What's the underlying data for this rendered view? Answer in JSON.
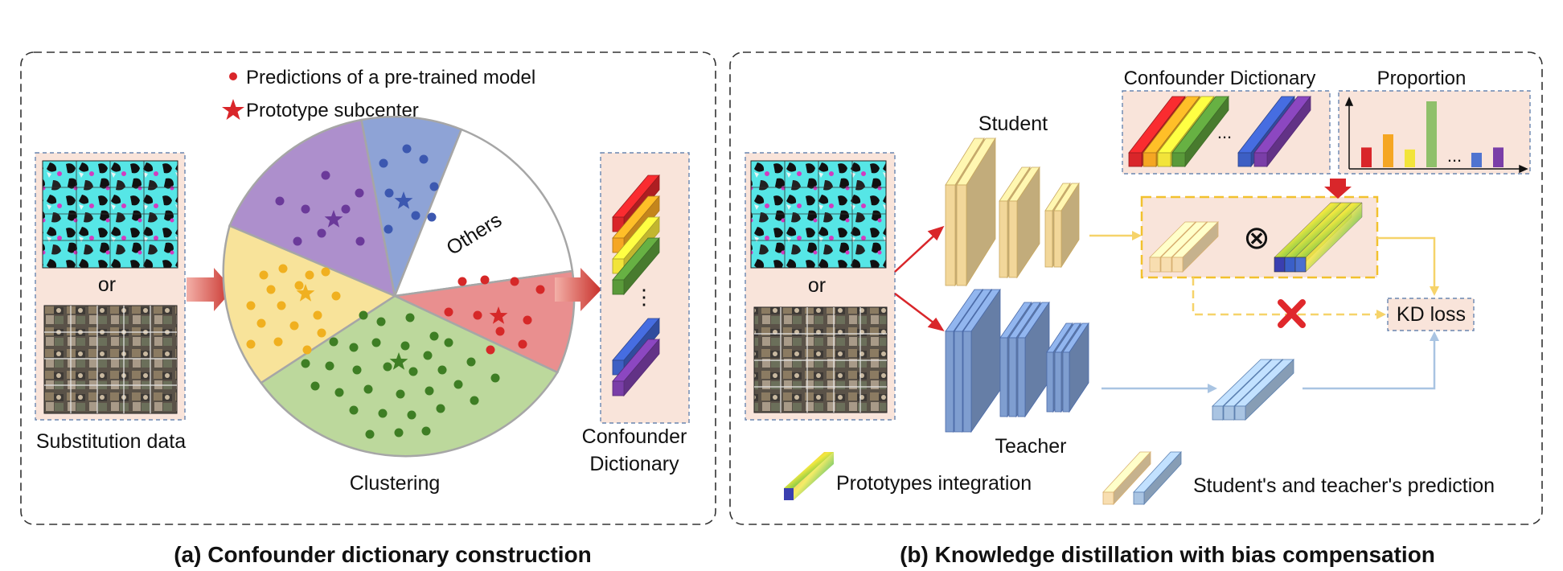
{
  "panel_a": {
    "legend_dot": "Predictions of a pre-trained model",
    "legend_star": "Prototype subcenter",
    "or_label": "or",
    "substitution_label": "Substitution data",
    "others_label": "Others",
    "clustering_label": "Clustering",
    "dict_label_line1": "Confounder",
    "dict_label_line2": "Dictionary",
    "ellipsis": "⋮",
    "caption": "(a) Confounder dictionary construction"
  },
  "panel_b": {
    "student_label": "Student",
    "teacher_label": "Teacher",
    "or_label": "or",
    "dict_title": "Confounder Dictionary",
    "proportion_title": "Proportion",
    "dict_ellipsis": "...",
    "prop_ellipsis": "...",
    "kd_loss": "KD loss",
    "otimes": "⊗",
    "legend_proto": "Prototypes integration",
    "legend_pred": "Student's and teacher's prediction",
    "caption": "(b)  Knowledge distillation with bias compensation"
  },
  "colors": {
    "red": "#d9262a",
    "orange": "#f5a623",
    "yellow": "#f2e43a",
    "green": "#5a9a3a",
    "blue": "#3d5fc4",
    "purple": "#7a3ea8",
    "cream": "#f8deb0",
    "lightblue": "#a9c4e2",
    "pie_purple": "#ad8fcc",
    "pie_blue": "#8ea3d6",
    "pie_yellow": "#f8e39a",
    "pie_green": "#bcd89c",
    "pie_red": "#e98f8f",
    "panel_bg": "#f9e4da"
  }
}
